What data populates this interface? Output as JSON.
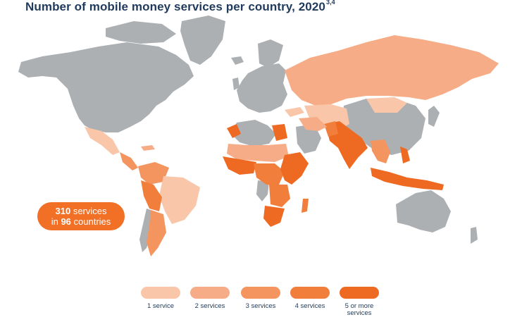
{
  "title": {
    "text": "Number of mobile money services per country, 2020",
    "superscript": "3,4"
  },
  "badge": {
    "line1_number": "310",
    "line1_text": " services",
    "line2_prefix": "in ",
    "line2_number": "96",
    "line2_text": " countries"
  },
  "legend": [
    {
      "label": "1 service",
      "color": "#f9c6a9"
    },
    {
      "label": "2 services",
      "color": "#f6ad87"
    },
    {
      "label": "3 services",
      "color": "#f4955f"
    },
    {
      "label": "4 services",
      "color": "#f27e3c"
    },
    {
      "label": "5 or more\nservices",
      "color": "#ee6a22"
    }
  ],
  "colors": {
    "no_service": "#adb0b3",
    "title": "#1f3a5c",
    "badge": "#f26f26"
  }
}
